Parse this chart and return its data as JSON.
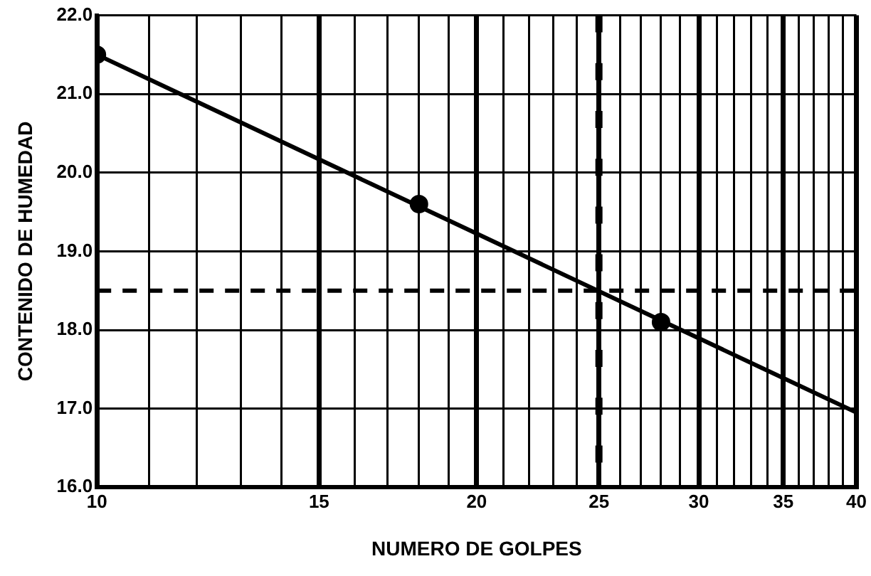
{
  "chart_data": {
    "type": "scatter",
    "xlabel": "NUMERO DE GOLPES",
    "ylabel": "CONTENIDO DE HUMEDAD",
    "log": "x",
    "grid": true,
    "legend": false,
    "marker": "circle",
    "xlim": [
      10,
      40
    ],
    "ylim": [
      16,
      22
    ],
    "xticks": [
      10,
      {
        "value": 11,
        "label": null
      },
      {
        "value": 12,
        "label": null
      },
      {
        "value": 13,
        "label": null
      },
      {
        "value": 14,
        "label": null
      },
      15,
      {
        "value": 16,
        "label": null
      },
      {
        "value": 17,
        "label": null
      },
      {
        "value": 18,
        "label": null
      },
      {
        "value": 19,
        "label": null
      },
      20,
      {
        "value": 21,
        "label": null
      },
      {
        "value": 22,
        "label": null
      },
      {
        "value": 23,
        "label": null
      },
      {
        "value": 24,
        "label": null
      },
      25,
      {
        "value": 26,
        "label": null
      },
      {
        "value": 27,
        "label": null
      },
      {
        "value": 28,
        "label": null
      },
      {
        "value": 29,
        "label": null
      },
      30,
      {
        "value": 31,
        "label": null
      },
      {
        "value": 32,
        "label": null
      },
      {
        "value": 33,
        "label": null
      },
      {
        "value": 34,
        "label": null
      },
      35,
      {
        "value": 36,
        "label": null
      },
      {
        "value": 37,
        "label": null
      },
      {
        "value": 38,
        "label": null
      },
      {
        "value": 39,
        "label": null
      },
      40
    ],
    "yticks": [
      {
        "value": 16,
        "label": "16.0"
      },
      {
        "value": 17,
        "label": "17.0"
      },
      {
        "value": 18,
        "label": "18.0"
      },
      {
        "value": 19,
        "label": "19.0"
      },
      {
        "value": 20,
        "label": "20.0"
      },
      {
        "value": 21,
        "label": "21.0"
      },
      {
        "value": 22,
        "label": "22.0"
      }
    ],
    "series": [
      {
        "color": "#000000",
        "x": [
          10,
          18,
          28
        ],
        "values": [
          21.5,
          19.6,
          18.1
        ]
      },
      {
        "type": "line",
        "color": "#000000",
        "marker": "none",
        "x": [
          10,
          40
        ],
        "values": [
          21.5,
          16.95
        ]
      }
    ],
    "ref_lines": [
      {
        "axis": "y",
        "value": 18.5,
        "line_style": "dashed",
        "color": "#000000"
      },
      {
        "axis": "x",
        "value": 25,
        "line_style": "dashed",
        "color": "#000000"
      }
    ]
  }
}
